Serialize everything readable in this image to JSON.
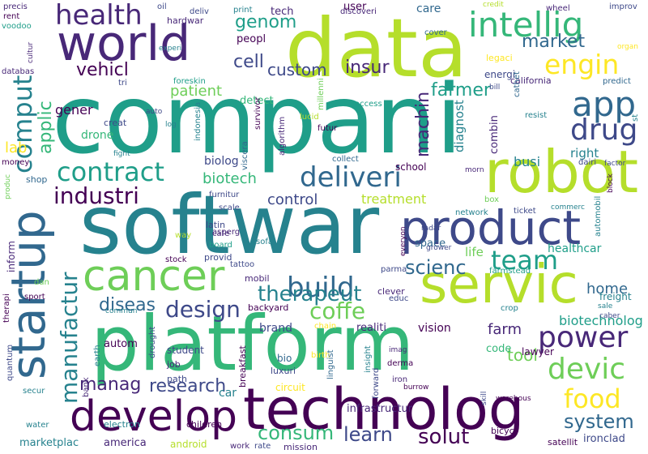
{
  "palette": {
    "background": "#ffffff",
    "viridis": [
      "#440154",
      "#482878",
      "#3e4989",
      "#31688e",
      "#26828e",
      "#1f9e89",
      "#35b779",
      "#6ece58",
      "#b5de2b",
      "#fde725"
    ]
  },
  "words": [
    {
      "text": "compani",
      "color": "#1f9e89"
    },
    {
      "text": "data",
      "color": "#b5de2b"
    },
    {
      "text": "softwar",
      "color": "#26828e"
    },
    {
      "text": "platform",
      "color": "#35b779"
    },
    {
      "text": "world",
      "color": "#482878"
    },
    {
      "text": "startup",
      "color": "#31688e"
    },
    {
      "text": "technolog",
      "color": "#440154"
    },
    {
      "text": "robot",
      "color": "#b5de2b"
    },
    {
      "text": "servic",
      "color": "#b5de2b"
    },
    {
      "text": "product",
      "color": "#3e4989"
    },
    {
      "text": "cancer",
      "color": "#6ece58"
    },
    {
      "text": "develop",
      "color": "#440154"
    },
    {
      "text": "intellig",
      "color": "#35b779"
    },
    {
      "text": "health",
      "color": "#482878"
    },
    {
      "text": "engin",
      "color": "#fde725"
    },
    {
      "text": "comput",
      "color": "#26828e"
    },
    {
      "text": "app",
      "color": "#31688e"
    },
    {
      "text": "drug",
      "color": "#3e4989"
    },
    {
      "text": "contract",
      "color": "#1f9e89"
    },
    {
      "text": "deliveri",
      "color": "#31688e"
    },
    {
      "text": "industri",
      "color": "#440154"
    },
    {
      "text": "manufactur",
      "color": "#26828e"
    },
    {
      "text": "build",
      "color": "#31688e"
    },
    {
      "text": "team",
      "color": "#1f9e89"
    },
    {
      "text": "power",
      "color": "#482878"
    },
    {
      "text": "devic",
      "color": "#6ece58"
    },
    {
      "text": "food",
      "color": "#fde725"
    },
    {
      "text": "design",
      "color": "#3e4989"
    },
    {
      "text": "coffe",
      "color": "#6ece58"
    },
    {
      "text": "therapeut",
      "color": "#26828e"
    },
    {
      "text": "research",
      "color": "#3e4989"
    },
    {
      "text": "system",
      "color": "#31688e"
    },
    {
      "text": "solut",
      "color": "#440154"
    },
    {
      "text": "learn",
      "color": "#3e4989"
    },
    {
      "text": "consum",
      "color": "#35b779"
    },
    {
      "text": "manag",
      "color": "#482878"
    },
    {
      "text": "scienc",
      "color": "#31688e"
    },
    {
      "text": "market",
      "color": "#31688e"
    },
    {
      "text": "genom",
      "color": "#1f9e89"
    },
    {
      "text": "farmer",
      "color": "#1f9e89"
    },
    {
      "text": "insur",
      "color": "#482878"
    },
    {
      "text": "custom",
      "color": "#3e4989"
    },
    {
      "text": "cell",
      "color": "#3e4989"
    },
    {
      "text": "vehicl",
      "color": "#440154"
    },
    {
      "text": "patient",
      "color": "#6ece58"
    },
    {
      "text": "machin",
      "color": "#482878"
    },
    {
      "text": "applic",
      "color": "#35b779"
    },
    {
      "text": "biotech",
      "color": "#35b779"
    },
    {
      "text": "treatment",
      "color": "#b5de2b"
    },
    {
      "text": "control",
      "color": "#3e4989"
    },
    {
      "text": "diseas",
      "color": "#31688e"
    },
    {
      "text": "home",
      "color": "#31688e"
    },
    {
      "text": "farm",
      "color": "#482878"
    },
    {
      "text": "tool",
      "color": "#6ece58"
    },
    {
      "text": "biotechnolog",
      "color": "#1f9e89"
    },
    {
      "text": "lab",
      "color": "#fde725"
    },
    {
      "text": "gener",
      "color": "#440154"
    },
    {
      "text": "drone",
      "color": "#35b779"
    },
    {
      "text": "busi",
      "color": "#26828e"
    },
    {
      "text": "right",
      "color": "#26828e"
    },
    {
      "text": "diagnost",
      "color": "#26828e"
    },
    {
      "text": "combin",
      "color": "#482878"
    },
    {
      "text": "biolog",
      "color": "#3e4989"
    },
    {
      "text": "detect",
      "color": "#35b779"
    },
    {
      "text": "peopl",
      "color": "#440154"
    },
    {
      "text": "energi",
      "color": "#3e4989"
    },
    {
      "text": "care",
      "color": "#31688e"
    },
    {
      "text": "tech",
      "color": "#482878"
    },
    {
      "text": "user",
      "color": "#440154"
    },
    {
      "text": "brand",
      "color": "#3e4989"
    },
    {
      "text": "vision",
      "color": "#440154"
    },
    {
      "text": "code",
      "color": "#35b779"
    },
    {
      "text": "autom",
      "color": "#440154"
    },
    {
      "text": "student",
      "color": "#3e4989"
    },
    {
      "text": "car",
      "color": "#26828e"
    },
    {
      "text": "america",
      "color": "#482878"
    },
    {
      "text": "marketplac",
      "color": "#26828e"
    },
    {
      "text": "android",
      "color": "#b5de2b"
    },
    {
      "text": "children",
      "color": "#440154"
    },
    {
      "text": "electron",
      "color": "#26828e"
    },
    {
      "text": "infrastructur",
      "color": "#482878"
    },
    {
      "text": "realiti",
      "color": "#482878"
    },
    {
      "text": "lawyer",
      "color": "#440154"
    },
    {
      "text": "healthcar",
      "color": "#1f9e89"
    },
    {
      "text": "life",
      "color": "#6ece58"
    },
    {
      "text": "space",
      "color": "#31688e"
    },
    {
      "text": "school",
      "color": "#440154"
    },
    {
      "text": "inform",
      "color": "#482878"
    },
    {
      "text": "shop",
      "color": "#31688e"
    },
    {
      "text": "freight",
      "color": "#26828e"
    },
    {
      "text": "ironclad",
      "color": "#3e4989"
    },
    {
      "text": "satellit",
      "color": "#440154"
    },
    {
      "text": "bicycl",
      "color": "#440154"
    },
    {
      "text": "mission",
      "color": "#482878"
    },
    {
      "text": "rate",
      "color": "#3e4989"
    },
    {
      "text": "work",
      "color": "#482878"
    },
    {
      "text": "circuit",
      "color": "#fde725"
    },
    {
      "text": "luxuri",
      "color": "#3e4989"
    },
    {
      "text": "bio",
      "color": "#31688e"
    },
    {
      "text": "job",
      "color": "#482878"
    },
    {
      "text": "path",
      "color": "#3e4989"
    },
    {
      "text": "breakfast",
      "color": "#440154"
    },
    {
      "text": "backyard",
      "color": "#440154"
    },
    {
      "text": "stock",
      "color": "#440154"
    },
    {
      "text": "provid",
      "color": "#3e4989"
    },
    {
      "text": "tattoo",
      "color": "#3e4989"
    },
    {
      "text": "mobil",
      "color": "#482878"
    },
    {
      "text": "cafe",
      "color": "#482878"
    },
    {
      "text": "board",
      "color": "#1f9e89"
    },
    {
      "text": "sofa",
      "color": "#26828e"
    },
    {
      "text": "latin",
      "color": "#3e4989"
    },
    {
      "text": "asperg",
      "color": "#482878"
    },
    {
      "text": "scale",
      "color": "#3e4989"
    },
    {
      "text": "furnitur",
      "color": "#3e4989"
    },
    {
      "text": "way",
      "color": "#b5de2b"
    },
    {
      "text": "money",
      "color": "#440154"
    },
    {
      "text": "fight",
      "color": "#26828e"
    },
    {
      "text": "produc",
      "color": "#6ece58"
    },
    {
      "text": "rent",
      "color": "#440154"
    },
    {
      "text": "voodoo",
      "color": "#1f9e89"
    },
    {
      "text": "precis",
      "color": "#482878"
    },
    {
      "text": "cultur",
      "color": "#482878"
    },
    {
      "text": "databas",
      "color": "#482878"
    },
    {
      "text": "tri",
      "color": "#3e4989"
    },
    {
      "text": "experi",
      "color": "#26828e"
    },
    {
      "text": "oil",
      "color": "#3e4989"
    },
    {
      "text": "hardwar",
      "color": "#482878"
    },
    {
      "text": "deliv",
      "color": "#3e4989"
    },
    {
      "text": "print",
      "color": "#26828e"
    },
    {
      "text": "discoveri",
      "color": "#482878"
    },
    {
      "text": "credit",
      "color": "#b5de2b"
    },
    {
      "text": "wheel",
      "color": "#482878"
    },
    {
      "text": "improv",
      "color": "#3e4989"
    },
    {
      "text": "organ",
      "color": "#fde725"
    },
    {
      "text": "cover",
      "color": "#31688e"
    },
    {
      "text": "legaci",
      "color": "#fde725"
    },
    {
      "text": "futur",
      "color": "#440154"
    },
    {
      "text": "foreskin",
      "color": "#1f9e89"
    },
    {
      "text": "bill",
      "color": "#3e4989"
    },
    {
      "text": "california",
      "color": "#482878"
    },
    {
      "text": "predict",
      "color": "#31688e"
    },
    {
      "text": "cathet",
      "color": "#31688e"
    },
    {
      "text": "resist",
      "color": "#26828e"
    },
    {
      "text": "st",
      "color": "#26828e"
    },
    {
      "text": "access",
      "color": "#1f9e89"
    },
    {
      "text": "lucid",
      "color": "#b5de2b"
    },
    {
      "text": "millenni",
      "color": "#6ece58"
    },
    {
      "text": "log",
      "color": "#26828e"
    },
    {
      "text": "auto",
      "color": "#3e4989"
    },
    {
      "text": "creat",
      "color": "#3e4989"
    },
    {
      "text": "indonesia",
      "color": "#26828e"
    },
    {
      "text": "viscera",
      "color": "#31688e"
    },
    {
      "text": "survivor",
      "color": "#440154"
    },
    {
      "text": "algorithm",
      "color": "#482878"
    },
    {
      "text": "collect",
      "color": "#31688e"
    },
    {
      "text": "morn",
      "color": "#482878"
    },
    {
      "text": "dairi",
      "color": "#3e4989"
    },
    {
      "text": "factor",
      "color": "#3e4989"
    },
    {
      "text": "block",
      "color": "#440154"
    },
    {
      "text": "automobil",
      "color": "#26828e"
    },
    {
      "text": "box",
      "color": "#6ece58"
    },
    {
      "text": "ticket",
      "color": "#3e4989"
    },
    {
      "text": "commerc",
      "color": "#26828e"
    },
    {
      "text": "network",
      "color": "#26828e"
    },
    {
      "text": "radar",
      "color": "#3e4989"
    },
    {
      "text": "grower",
      "color": "#3e4989"
    },
    {
      "text": "everyon",
      "color": "#440154"
    },
    {
      "text": "parma",
      "color": "#3e4989"
    },
    {
      "text": "farmstead",
      "color": "#1f9e89"
    },
    {
      "text": "clever",
      "color": "#482878"
    },
    {
      "text": "educ",
      "color": "#3e4989"
    },
    {
      "text": "crop",
      "color": "#26828e"
    },
    {
      "text": "sale",
      "color": "#26828e"
    },
    {
      "text": "caber",
      "color": "#3e4989"
    },
    {
      "text": "imag",
      "color": "#482878"
    },
    {
      "text": "derma",
      "color": "#440154"
    },
    {
      "text": "iron",
      "color": "#482878"
    },
    {
      "text": "burrow",
      "color": "#440154"
    },
    {
      "text": "warehous",
      "color": "#440154"
    },
    {
      "text": "forward",
      "color": "#3e4989"
    },
    {
      "text": "skill",
      "color": "#3e4989"
    },
    {
      "text": "insight",
      "color": "#26828e"
    },
    {
      "text": "chain",
      "color": "#fde725"
    },
    {
      "text": "birth",
      "color": "#fde725"
    },
    {
      "text": "linguist",
      "color": "#31688e"
    },
    {
      "text": "drought",
      "color": "#3e4989"
    },
    {
      "text": "earth",
      "color": "#26828e"
    },
    {
      "text": "bank",
      "color": "#482878"
    },
    {
      "text": "water",
      "color": "#26828e"
    },
    {
      "text": "secur",
      "color": "#26828e"
    },
    {
      "text": "commun",
      "color": "#26828e"
    },
    {
      "text": "sport",
      "color": "#440154"
    },
    {
      "text": "dan",
      "color": "#6ece58"
    },
    {
      "text": "therapi",
      "color": "#440154"
    },
    {
      "text": "quantum",
      "color": "#3e4989"
    }
  ]
}
